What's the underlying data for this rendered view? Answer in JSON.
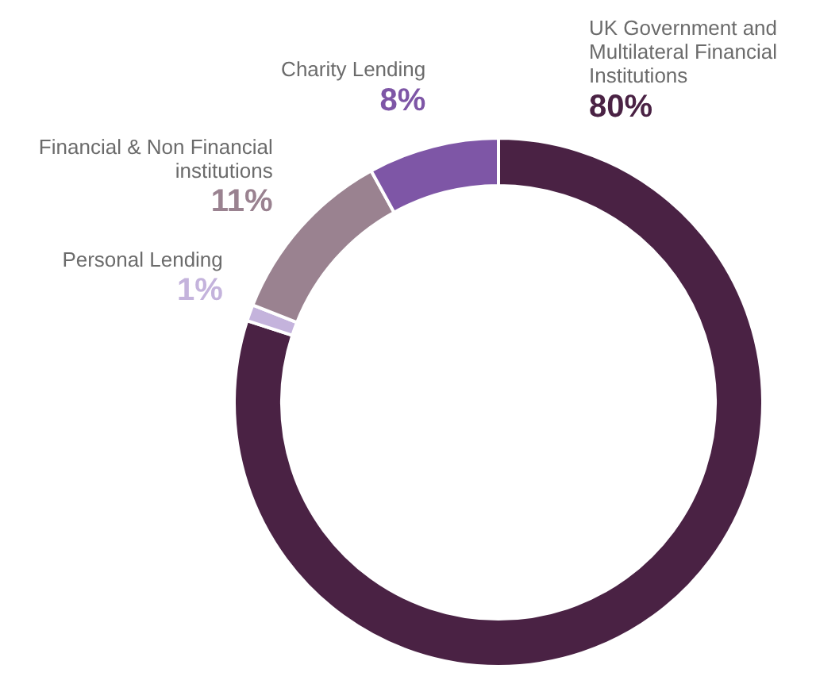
{
  "chart_data": {
    "type": "donut",
    "categories": [
      "UK Government and Multilateral Financial Institutions",
      "Personal Lending",
      "Financial & Non Financial institutions",
      "Charity Lending"
    ],
    "values": [
      80,
      1,
      11,
      8
    ],
    "colors": [
      "#4a2244",
      "#c4b3dc",
      "#9a8290",
      "#7e56a6"
    ],
    "value_labels": [
      "80%",
      "1%",
      "11%",
      "8%"
    ],
    "legend": false
  }
}
